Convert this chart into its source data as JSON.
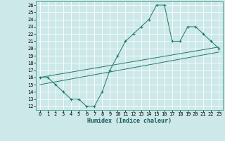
{
  "xlabel": "Humidex (Indice chaleur)",
  "bg_color": "#cce8e8",
  "grid_color": "#b0d8d8",
  "line_color": "#1a7a6e",
  "xlim": [
    -0.5,
    23.5
  ],
  "ylim": [
    11.5,
    26.5
  ],
  "xticks": [
    0,
    1,
    2,
    3,
    4,
    5,
    6,
    7,
    8,
    9,
    10,
    11,
    12,
    13,
    14,
    15,
    16,
    17,
    18,
    19,
    20,
    21,
    22,
    23
  ],
  "yticks": [
    12,
    13,
    14,
    15,
    16,
    17,
    18,
    19,
    20,
    21,
    22,
    23,
    24,
    25,
    26
  ],
  "data_x": [
    0,
    1,
    2,
    3,
    4,
    5,
    6,
    7,
    8,
    9,
    10,
    11,
    12,
    13,
    14,
    15,
    16,
    17,
    18,
    19,
    20,
    21,
    22,
    23
  ],
  "data_y": [
    16,
    16,
    15,
    14,
    13,
    13,
    12,
    12,
    14,
    17,
    19,
    21,
    22,
    23,
    24,
    26,
    26,
    21,
    21,
    23,
    23,
    22,
    21,
    20
  ],
  "trend1_x": [
    0,
    23
  ],
  "trend1_y": [
    16.0,
    20.2
  ],
  "trend2_x": [
    0,
    23
  ],
  "trend2_y": [
    15.0,
    19.5
  ]
}
